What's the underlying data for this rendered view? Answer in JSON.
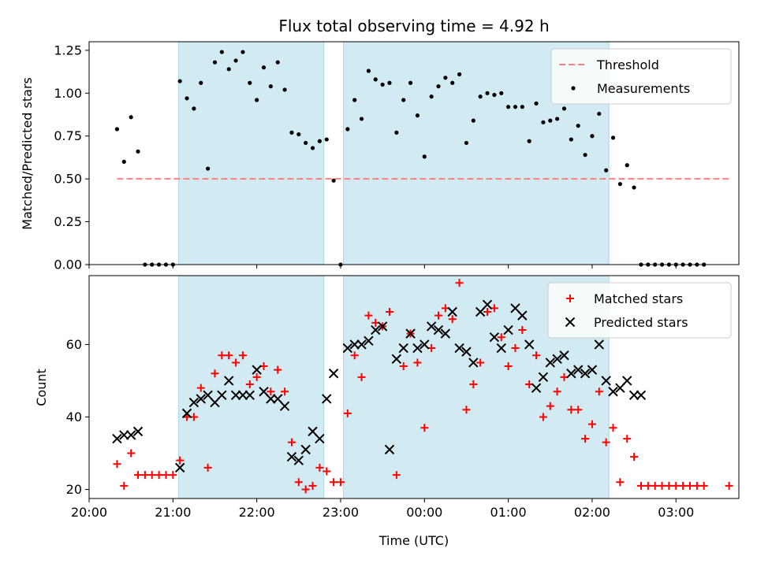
{
  "chart_data": [
    {
      "type": "scatter",
      "title": "Flux total observing time = 4.92 h",
      "xlabel": "",
      "ylabel": "Matched/Predicted stars",
      "x_unit": "time_utc",
      "xlim": [
        "20:00",
        "03:45"
      ],
      "ylim": [
        0,
        1.3
      ],
      "yticks": [
        "0.00",
        "0.25",
        "0.50",
        "0.75",
        "1.00",
        "1.25"
      ],
      "shaded_intervals": [
        [
          "21:04",
          "22:48"
        ],
        [
          "23:02",
          "02:12"
        ]
      ],
      "shade_color": "#add8e6",
      "legend": "upper right",
      "series": [
        {
          "name": "Threshold",
          "kind": "line",
          "style": "dashed",
          "color": "#ff8080",
          "x": [
            "20:20",
            "03:38"
          ],
          "y": [
            0.5,
            0.5
          ]
        },
        {
          "name": "Measurements",
          "kind": "scatter",
          "color": "#000000",
          "x": [
            "20:20",
            "20:25",
            "20:30",
            "20:35",
            "20:40",
            "20:45",
            "20:50",
            "20:55",
            "21:00",
            "21:05",
            "21:10",
            "21:15",
            "21:20",
            "21:25",
            "21:30",
            "21:35",
            "21:40",
            "21:45",
            "21:50",
            "21:55",
            "22:00",
            "22:05",
            "22:10",
            "22:15",
            "22:20",
            "22:25",
            "22:30",
            "22:35",
            "22:40",
            "22:45",
            "22:50",
            "22:55",
            "23:00",
            "23:05",
            "23:10",
            "23:15",
            "23:20",
            "23:25",
            "23:30",
            "23:35",
            "23:40",
            "23:45",
            "23:50",
            "23:55",
            "00:00",
            "00:05",
            "00:10",
            "00:15",
            "00:20",
            "00:25",
            "00:30",
            "00:35",
            "00:40",
            "00:45",
            "00:50",
            "00:55",
            "01:00",
            "01:05",
            "01:10",
            "01:15",
            "01:20",
            "01:25",
            "01:30",
            "01:35",
            "01:40",
            "01:45",
            "01:50",
            "01:55",
            "02:00",
            "02:05",
            "02:10",
            "02:15",
            "02:20",
            "02:25",
            "02:30",
            "02:35",
            "02:40",
            "02:45",
            "02:50",
            "02:55",
            "03:00",
            "03:05",
            "03:10",
            "03:15",
            "03:20"
          ],
          "y": [
            0.79,
            0.6,
            0.86,
            0.66,
            0.0,
            0.0,
            0.0,
            0.0,
            0.0,
            1.07,
            0.97,
            0.91,
            1.06,
            0.56,
            1.18,
            1.24,
            1.14,
            1.19,
            1.24,
            1.06,
            0.96,
            1.15,
            1.04,
            1.18,
            1.02,
            0.77,
            0.76,
            0.71,
            0.68,
            0.72,
            0.73,
            0.49,
            0.0,
            0.79,
            0.96,
            0.85,
            1.13,
            1.08,
            1.05,
            1.06,
            0.77,
            0.96,
            1.06,
            0.87,
            0.63,
            0.98,
            1.04,
            1.09,
            1.06,
            1.11,
            0.71,
            0.84,
            0.98,
            1.0,
            0.99,
            1.0,
            0.92,
            0.92,
            0.92,
            0.72,
            0.94,
            0.83,
            0.84,
            0.85,
            0.91,
            0.73,
            0.81,
            0.64,
            0.75,
            0.88,
            0.55,
            0.74,
            0.47,
            0.58,
            0.45,
            0.0,
            0.0,
            0.0,
            0.0,
            0.0,
            0.0,
            0.0,
            0.0,
            0.0,
            0.0
          ]
        }
      ]
    },
    {
      "type": "scatter",
      "title": "",
      "xlabel": "Time (UTC)",
      "ylabel": "Count",
      "x_unit": "time_utc",
      "xlim": [
        "20:00",
        "03:45"
      ],
      "ylim": [
        17.5,
        79
      ],
      "yticks": [
        "20",
        "40",
        "60"
      ],
      "xticks": [
        "20:00",
        "21:00",
        "22:00",
        "23:00",
        "00:00",
        "01:00",
        "02:00",
        "03:00"
      ],
      "shaded_intervals": [
        [
          "21:04",
          "22:48"
        ],
        [
          "23:02",
          "02:12"
        ]
      ],
      "shade_color": "#add8e6",
      "legend": "upper right",
      "series": [
        {
          "name": "Matched stars",
          "marker": "+",
          "color": "#ff0000",
          "x": [
            "20:20",
            "20:25",
            "20:30",
            "20:35",
            "20:40",
            "20:45",
            "20:50",
            "20:55",
            "21:00",
            "21:05",
            "21:10",
            "21:15",
            "21:20",
            "21:25",
            "21:30",
            "21:35",
            "21:40",
            "21:45",
            "21:50",
            "21:55",
            "22:00",
            "22:05",
            "22:10",
            "22:15",
            "22:20",
            "22:25",
            "22:30",
            "22:35",
            "22:40",
            "22:45",
            "22:50",
            "22:55",
            "23:00",
            "23:05",
            "23:10",
            "23:15",
            "23:20",
            "23:25",
            "23:30",
            "23:35",
            "23:40",
            "23:45",
            "23:50",
            "23:55",
            "00:00",
            "00:05",
            "00:10",
            "00:15",
            "00:20",
            "00:25",
            "00:30",
            "00:35",
            "00:40",
            "00:45",
            "00:50",
            "00:55",
            "01:00",
            "01:05",
            "01:10",
            "01:15",
            "01:20",
            "01:25",
            "01:30",
            "01:35",
            "01:40",
            "01:45",
            "01:50",
            "01:55",
            "02:00",
            "02:05",
            "02:10",
            "02:15",
            "02:20",
            "02:25",
            "02:30",
            "02:35",
            "02:40",
            "02:45",
            "02:50",
            "02:55",
            "03:00",
            "03:05",
            "03:10",
            "03:15",
            "03:20",
            "03:38"
          ],
          "y": [
            27,
            21,
            30,
            24,
            24,
            24,
            24,
            24,
            24,
            28,
            40,
            40,
            48,
            26,
            52,
            57,
            57,
            55,
            57,
            49,
            51,
            54,
            47,
            53,
            47,
            33,
            22,
            20,
            21,
            26,
            25,
            22,
            22,
            41,
            57,
            51,
            68,
            66,
            65,
            69,
            24,
            54,
            63,
            55,
            37,
            59,
            68,
            70,
            67,
            77,
            42,
            49,
            55,
            69,
            70,
            62,
            54,
            59,
            64,
            49,
            57,
            40,
            43,
            47,
            51,
            42,
            42,
            34,
            38,
            47,
            33,
            37,
            22,
            34,
            29,
            21,
            21,
            21,
            21,
            21,
            21,
            21,
            21,
            21,
            21,
            21
          ]
        },
        {
          "name": "Predicted stars",
          "marker": "x",
          "color": "#000000",
          "x": [
            "20:20",
            "20:25",
            "20:30",
            "20:35",
            "21:05",
            "21:10",
            "21:15",
            "21:20",
            "21:25",
            "21:30",
            "21:35",
            "21:40",
            "21:45",
            "21:50",
            "21:55",
            "22:00",
            "22:05",
            "22:10",
            "22:15",
            "22:20",
            "22:25",
            "22:30",
            "22:35",
            "22:40",
            "22:45",
            "22:50",
            "22:55",
            "23:05",
            "23:10",
            "23:15",
            "23:20",
            "23:25",
            "23:30",
            "23:35",
            "23:40",
            "23:45",
            "23:50",
            "23:55",
            "00:00",
            "00:05",
            "00:10",
            "00:15",
            "00:20",
            "00:25",
            "00:30",
            "00:35",
            "00:40",
            "00:45",
            "00:50",
            "00:55",
            "01:00",
            "01:05",
            "01:10",
            "01:15",
            "01:20",
            "01:25",
            "01:30",
            "01:35",
            "01:40",
            "01:45",
            "01:50",
            "01:55",
            "02:00",
            "02:05",
            "02:10",
            "02:15",
            "02:20",
            "02:25",
            "02:30",
            "02:35"
          ],
          "y": [
            34,
            35,
            35,
            36,
            26,
            41,
            44,
            45,
            46,
            44,
            46,
            50,
            46,
            46,
            46,
            53,
            47,
            45,
            45,
            43,
            29,
            28,
            31,
            36,
            34,
            45,
            52,
            59,
            60,
            60,
            61,
            64,
            65,
            31,
            56,
            59,
            63,
            59,
            60,
            65,
            64,
            63,
            69,
            59,
            58,
            55,
            69,
            71,
            62,
            59,
            64,
            70,
            68,
            60,
            48,
            51,
            55,
            56,
            57,
            52,
            53,
            52,
            53,
            60,
            50,
            47,
            48,
            50,
            46,
            46
          ]
        }
      ]
    }
  ]
}
